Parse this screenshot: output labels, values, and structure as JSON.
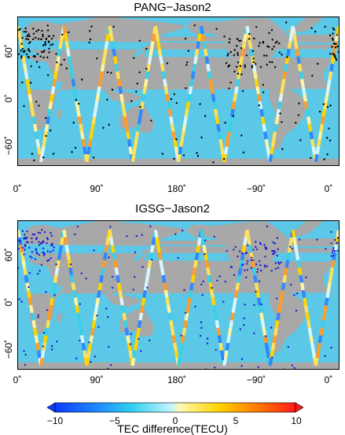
{
  "panels": [
    {
      "title": "PANG−Jason2",
      "station_color": "#000000"
    },
    {
      "title": "IGSG−Jason2",
      "station_color": "#1a1ad8"
    }
  ],
  "axes": {
    "x_ticks": [
      "0˚",
      "90˚",
      "180˚",
      "−90˚",
      "0˚"
    ],
    "y_ticks": [
      "60˚",
      "0˚",
      "−60˚"
    ]
  },
  "colors": {
    "ocean": "#5ac8e6",
    "land": "#a8a8a8"
  },
  "colorbar": {
    "ticks": [
      "−10",
      "−5",
      "0",
      "5",
      "10"
    ],
    "label": "TEC difference(TECU)",
    "range": [
      -10,
      10
    ]
  }
}
